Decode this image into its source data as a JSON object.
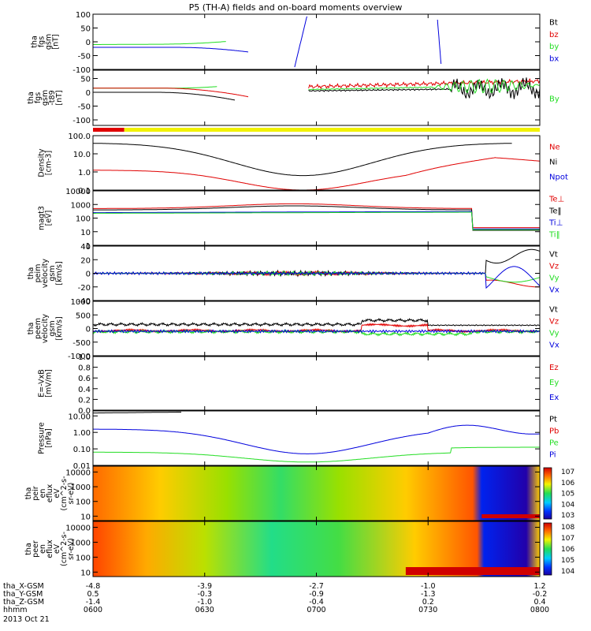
{
  "title": "P5 (TH-A) fields and on-board moments overview",
  "colors": {
    "black": "#000000",
    "red": "#e00000",
    "green": "#22dd22",
    "blue": "#0000dd",
    "yellow": "#f2f200"
  },
  "chart_data": [
    {
      "type": "line",
      "name": "fgs_gsm",
      "ylabel": [
        "tha",
        "fgs",
        "gsm",
        "[nT]"
      ],
      "ylim": [
        -100,
        100
      ],
      "yscale": "linear",
      "ticks": [
        "100",
        "50",
        "0",
        "-50",
        "-100"
      ],
      "series": [
        {
          "name": "Bt",
          "color": "#000000"
        },
        {
          "name": "bz",
          "color": "#e00000"
        },
        {
          "name": "by",
          "color": "#22dd22"
        },
        {
          "name": "bx",
          "color": "#0000dd"
        }
      ]
    },
    {
      "type": "line",
      "name": "fgs_gsm_t89",
      "ylabel": [
        "tha",
        "fgs",
        "gsm",
        "-t89",
        "[nT]"
      ],
      "ylim": [
        -120,
        80
      ],
      "yscale": "linear",
      "ticks": [
        "50",
        "0",
        "-50",
        "-100"
      ],
      "series": [
        {
          "name": "By",
          "color": "#22dd22"
        }
      ]
    },
    {
      "type": "line",
      "name": "density",
      "ylabel": [
        "Density",
        "[cm-3]"
      ],
      "ylim": [
        0.1,
        100
      ],
      "yscale": "log",
      "ticks": [
        "100.0",
        "10.0",
        "1.0",
        "0.1"
      ],
      "series": [
        {
          "name": "Ne",
          "color": "#e00000"
        },
        {
          "name": "Ni",
          "color": "#000000"
        },
        {
          "name": "Npot",
          "color": "#0000dd"
        }
      ]
    },
    {
      "type": "line",
      "name": "temperature",
      "ylabel": [
        "magt3",
        "[eV]"
      ],
      "ylim": [
        1,
        10000
      ],
      "yscale": "log",
      "ticks": [
        "10000",
        "1000",
        "100",
        "10",
        "1"
      ],
      "series": [
        {
          "name": "Te⊥",
          "color": "#e00000"
        },
        {
          "name": "Te‖",
          "color": "#000000"
        },
        {
          "name": "Ti⊥",
          "color": "#0000dd"
        },
        {
          "name": "Ti‖",
          "color": "#22dd22"
        }
      ]
    },
    {
      "type": "line",
      "name": "peim_velocity",
      "ylabel": [
        "tha",
        "peim",
        "velocity",
        "gsm",
        "[km/s]"
      ],
      "ylim": [
        -40,
        40
      ],
      "yscale": "linear",
      "ticks": [
        "40",
        "20",
        "0",
        "-20",
        "-40"
      ],
      "series": [
        {
          "name": "Vt",
          "color": "#000000"
        },
        {
          "name": "Vz",
          "color": "#e00000"
        },
        {
          "name": "Vy",
          "color": "#22dd22"
        },
        {
          "name": "Vx",
          "color": "#0000dd"
        }
      ]
    },
    {
      "type": "line",
      "name": "peem_velocity",
      "ylabel": [
        "tha",
        "peem",
        "velocity",
        "gsm",
        "[km/s]"
      ],
      "ylim": [
        -1000,
        1000
      ],
      "yscale": "linear",
      "ticks": [
        "1000",
        "500",
        "0",
        "-500",
        "-1000"
      ],
      "series": [
        {
          "name": "Vt",
          "color": "#000000"
        },
        {
          "name": "Vz",
          "color": "#e00000"
        },
        {
          "name": "Vy",
          "color": "#22dd22"
        },
        {
          "name": "Vx",
          "color": "#0000dd"
        }
      ]
    },
    {
      "type": "line",
      "name": "efield",
      "ylabel": [
        "E=-VxB",
        "[mV/m]"
      ],
      "ylim": [
        0,
        1
      ],
      "yscale": "linear",
      "ticks": [
        "1.0",
        "0.8",
        "0.6",
        "0.4",
        "0.2",
        "0.0"
      ],
      "series": [
        {
          "name": "Ez",
          "color": "#e00000"
        },
        {
          "name": "Ey",
          "color": "#22dd22"
        },
        {
          "name": "Ex",
          "color": "#0000dd"
        }
      ]
    },
    {
      "type": "line",
      "name": "pressure",
      "ylabel": [
        "Pressure",
        "[nPa]"
      ],
      "ylim": [
        0.01,
        20
      ],
      "yscale": "log",
      "ticks": [
        "10.00",
        "1.00",
        "0.10",
        "0.01"
      ],
      "series": [
        {
          "name": "Pt",
          "color": "#000000"
        },
        {
          "name": "Pb",
          "color": "#e00000"
        },
        {
          "name": "Pe",
          "color": "#22dd22"
        },
        {
          "name": "Pi",
          "color": "#0000dd"
        }
      ]
    },
    {
      "type": "heatmap",
      "name": "peir_en_eflux",
      "ylabel": [
        "tha",
        "peir",
        "en",
        "eflux",
        "eV",
        "(cm^2-s-",
        "sr-eV)"
      ],
      "ylim": [
        5,
        25000
      ],
      "yscale": "log",
      "ticks": [
        "10000",
        "1000",
        "100",
        "10"
      ],
      "colorbar": [
        "10^7",
        "10^6",
        "10^5",
        "10^4",
        "10^3"
      ]
    },
    {
      "type": "heatmap",
      "name": "peer_en_eflux",
      "ylabel": [
        "tha",
        "peer",
        "en",
        "eflux",
        "eV",
        "(cm^2-s-",
        "sr-eV)"
      ],
      "ylim": [
        5,
        25000
      ],
      "yscale": "log",
      "ticks": [
        "10000",
        "1000",
        "100",
        "10"
      ],
      "colorbar": [
        "10^8",
        "10^7",
        "10^6",
        "10^5",
        "10^4"
      ]
    }
  ],
  "xaxis": {
    "labels": [
      "tha_X-GSM",
      "tha_Y-GSM",
      "tha_Z-GSM",
      "hhmm",
      "2013 Oct 21"
    ],
    "ticks": [
      {
        "x": "-4.8",
        "y": "0.5",
        "z": "-1.4",
        "t": "0600"
      },
      {
        "x": "-3.9",
        "y": "-0.3",
        "z": "-1.0",
        "t": "0630"
      },
      {
        "x": "-2.7",
        "y": "-0.9",
        "z": "-0.4",
        "t": "0700"
      },
      {
        "x": "-1.0",
        "y": "-1.3",
        "z": "0.2",
        "t": "0730"
      },
      {
        "x": "1.2",
        "y": "-0.2",
        "z": "0.4",
        "t": "0800"
      }
    ]
  }
}
